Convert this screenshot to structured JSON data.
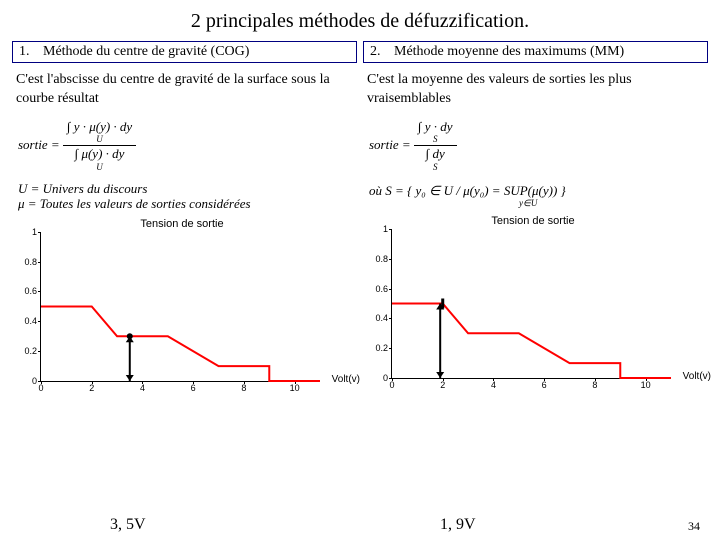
{
  "title": "2 principales méthodes de défuzzification.",
  "page_number": "34",
  "left": {
    "num": "1.",
    "method": "Méthode du centre de gravité (COG)",
    "desc": "C'est l'abscisse du centre de gravité de la surface sous la courbe résultat",
    "formula_sortie_label": "sortie =",
    "formula_num": "∫ y · μ(y) · dy",
    "formula_den": "∫ μ(y) · dy",
    "formula_sub": "U",
    "legend_u": "U = Univers du discours",
    "legend_mu": "μ = Toutes les valeurs de sorties considérées",
    "result": "3, 5V"
  },
  "right": {
    "num": "2.",
    "method": "Méthode moyenne des maximums (MM)",
    "desc": "C'est la moyenne des valeurs de sorties les plus vraisemblables",
    "formula_sortie_label": "sortie =",
    "formula_num": "∫ y · dy",
    "formula_den": "∫ dy",
    "formula_sub": "S",
    "legend_s": "où S = { y₀ ∈ U / μ(y₀) = SUP(μ(y)) }",
    "legend_s_sub": "y∈U",
    "result": "1, 9V"
  },
  "chart": {
    "title": "Tension de sortie",
    "xlabel": "Volt(v)",
    "xticks": [
      "0",
      "2",
      "4",
      "6",
      "8",
      "10"
    ],
    "yticks": [
      "0",
      "0.2",
      "0.4",
      "0.6",
      "0.8",
      "1"
    ],
    "xlim": [
      0,
      11
    ],
    "ylim": [
      0,
      1
    ],
    "line_color": "#ff0000",
    "line_width": 2,
    "arrow_color": "#000000",
    "points_left": [
      [
        0,
        0.5
      ],
      [
        2,
        0.5
      ],
      [
        3,
        0.3
      ],
      [
        5,
        0.3
      ],
      [
        7,
        0.1
      ],
      [
        9,
        0.1
      ],
      [
        9,
        0
      ],
      [
        11,
        0
      ]
    ],
    "arrow_left_x": 3.5,
    "arrow_left_ytop": 0.3,
    "arrow_right_x": 1.9,
    "arrow_right_ytop": 0.5,
    "tick_mark_right_x": 2,
    "tick_mark_right_y": 0.5
  },
  "colors": {
    "box_border": "#000080",
    "text": "#000000",
    "bg": "#ffffff"
  }
}
